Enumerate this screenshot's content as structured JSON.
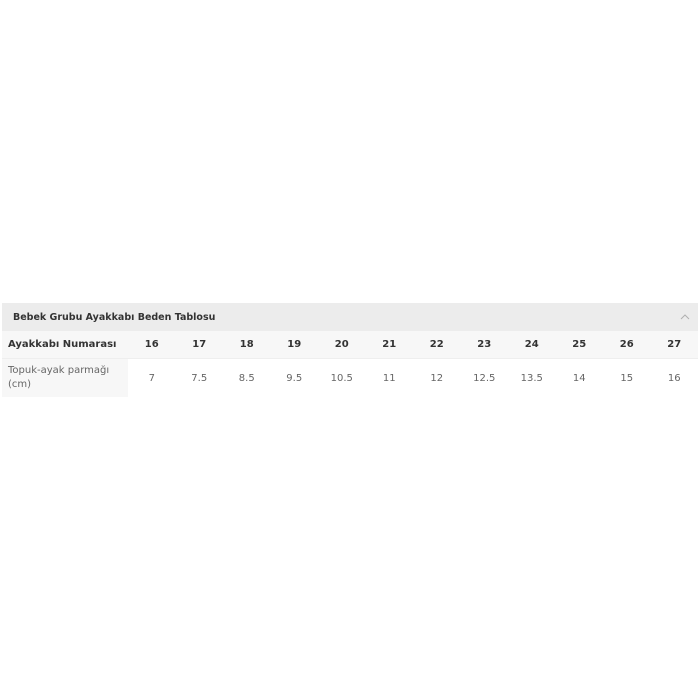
{
  "title": "Bebek Grubu Ayakkabı Beden Tablosu",
  "collapse_icon": "chevron-up-icon",
  "rows": [
    {
      "label": "Ayakkabı Numarası",
      "values": [
        "16",
        "17",
        "18",
        "19",
        "20",
        "21",
        "22",
        "23",
        "24",
        "25",
        "26",
        "27"
      ]
    },
    {
      "label": "Topuk-ayak parmağı (cm)",
      "values": [
        "7",
        "7.5",
        "8.5",
        "9.5",
        "10.5",
        "11",
        "12",
        "12.5",
        "13.5",
        "14",
        "15",
        "16"
      ]
    }
  ]
}
